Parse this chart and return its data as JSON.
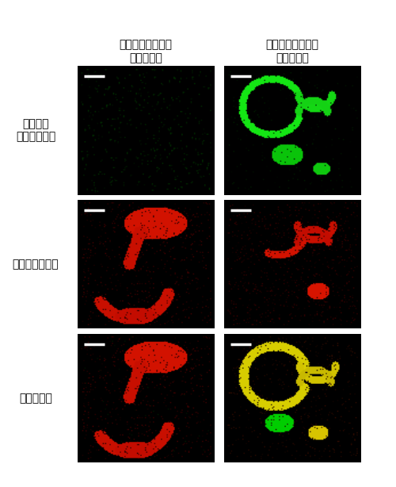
{
  "col_headers": [
    "ミトコンドリアが\n正常な状態",
    "ミトコンドリアが\n異常な状態"
  ],
  "row_labels": [
    "リン酸化\nユビキチン鎖",
    "ミトコンドリア",
    "重ね合わせ"
  ],
  "background_color": "#ffffff",
  "text_color": "#000000",
  "scale_bar_color": "#ffffff"
}
